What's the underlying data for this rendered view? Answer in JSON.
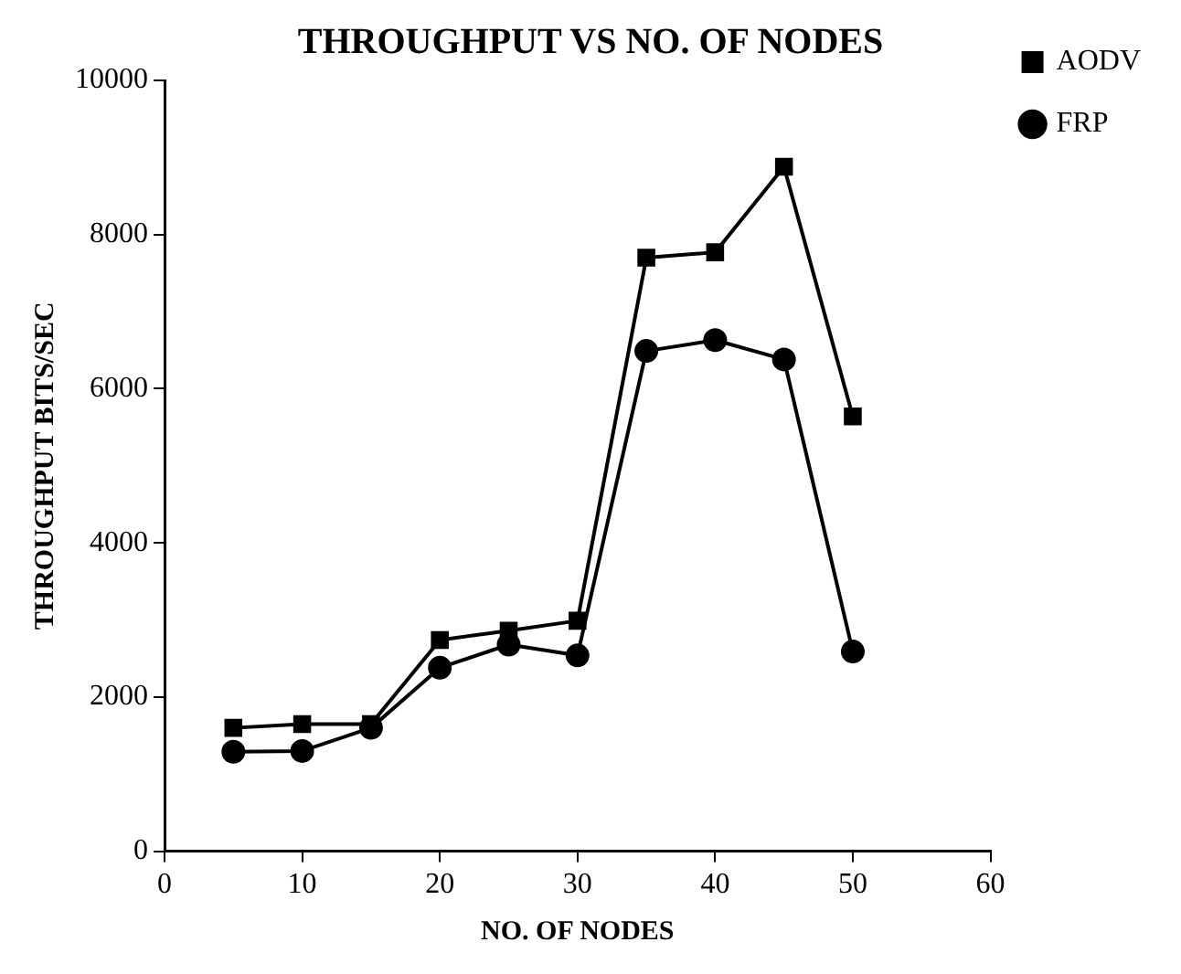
{
  "chart_data": {
    "type": "line",
    "title": "THROUGHPUT VS NO. OF NODES",
    "xlabel": "NO. OF NODES",
    "ylabel": "THROUGHPUT BITS/SEC",
    "x": [
      5,
      10,
      15,
      20,
      25,
      30,
      35,
      40,
      45,
      50
    ],
    "series": [
      {
        "name": "AODV",
        "color": "#000000",
        "marker": "square",
        "values": [
          1600,
          1650,
          1650,
          2740,
          2860,
          2990,
          7700,
          7770,
          8880,
          5640
        ]
      },
      {
        "name": "FRP",
        "color": "#000000",
        "marker": "circle",
        "values": [
          1290,
          1300,
          1600,
          2380,
          2680,
          2540,
          6490,
          6630,
          6380,
          2590
        ]
      }
    ],
    "xlim": [
      0,
      60
    ],
    "xticks": [
      0,
      10,
      20,
      30,
      40,
      50,
      60
    ],
    "ylim": [
      0,
      10000
    ],
    "yticks": [
      0,
      2000,
      4000,
      6000,
      8000,
      10000
    ],
    "grid": false,
    "legend": "top right",
    "line_style": "solid"
  }
}
